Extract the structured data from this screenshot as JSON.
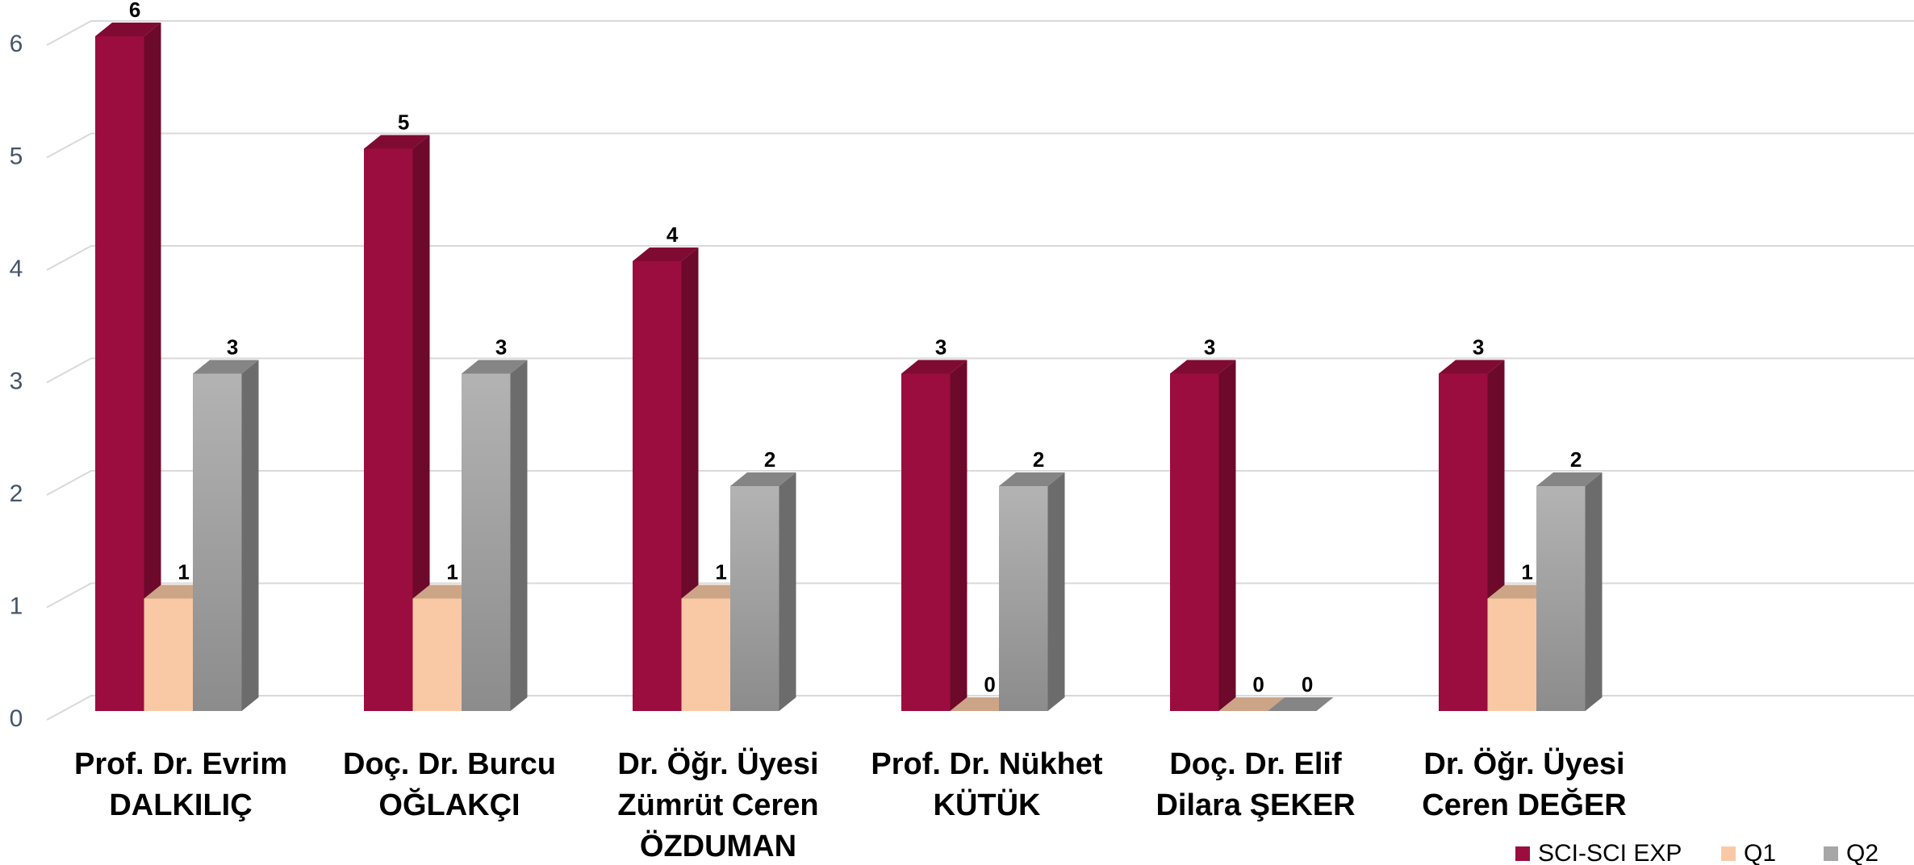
{
  "chart_data": {
    "type": "bar3d",
    "categories": [
      [
        "Prof. Dr. Evrim",
        "DALKILIÇ"
      ],
      [
        "Doç. Dr. Burcu",
        "OĞLAKÇI"
      ],
      [
        "Dr. Öğr. Üyesi",
        "Zümrüt Ceren",
        "ÖZDUMAN"
      ],
      [
        "Prof. Dr. Nükhet",
        "KÜTÜK"
      ],
      [
        "Doç. Dr. Elif",
        "Dilara ŞEKER"
      ],
      [
        "Dr. Öğr. Üyesi",
        "Ceren DEĞER"
      ]
    ],
    "series": [
      {
        "name": "SCI-SCI EXP",
        "color": "#9b0d3e",
        "values": [
          6,
          5,
          4,
          3,
          3,
          3
        ]
      },
      {
        "name": "Q1",
        "color": "#f9c9a5",
        "values": [
          1,
          1,
          1,
          0,
          0,
          1
        ]
      },
      {
        "name": "Q2",
        "color": "#a6a6a6",
        "values": [
          3,
          3,
          2,
          2,
          0,
          2
        ]
      }
    ],
    "ylim": [
      0,
      6
    ],
    "yticks": [
      0,
      1,
      2,
      3,
      4,
      5,
      6
    ],
    "grid": true,
    "legend": "bottom-right"
  }
}
